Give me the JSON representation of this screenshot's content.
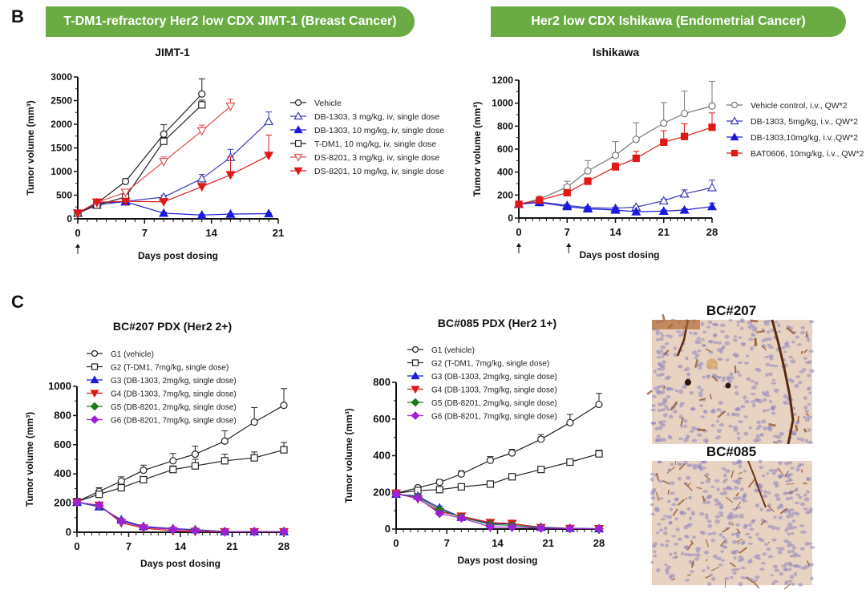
{
  "panels": {
    "B": "B",
    "C": "C"
  },
  "banners": {
    "left": "T-DM1-refractory Her2 low CDX JIMT-1 (Breast Cancer)",
    "right": "Her2 low CDX Ishikawa (Endometrial Cancer)"
  },
  "ihc": {
    "top_label": "BC#207",
    "bottom_label": "BC#085",
    "stain_color": "#8b4a1e",
    "background_color": "#e8d2c2",
    "nuclei_color": "#8e86c0"
  },
  "chart_data": [
    {
      "id": "jimt1",
      "type": "line",
      "title": "JIMT-1",
      "xlabel": "Days post dosing",
      "ylabel": "Tumor volume (mm³)",
      "xlim": [
        0,
        21
      ],
      "ylim": [
        0,
        3000
      ],
      "xticks": [
        0,
        7,
        14,
        21
      ],
      "yticks": [
        0,
        500,
        1000,
        1500,
        2000,
        2500,
        3000
      ],
      "dosing_arrows": [
        0
      ],
      "legend": "right",
      "grid": false,
      "series": [
        {
          "name": "Vehicle",
          "color": "#222222",
          "marker": "circle-open",
          "x": [
            0,
            2,
            5,
            9,
            13
          ],
          "y": [
            120,
            330,
            790,
            1790,
            2640
          ],
          "err": [
            20,
            40,
            60,
            200,
            320
          ]
        },
        {
          "name": "DB-1303, 3  mg/kg, iv, single dose",
          "color": "#3a3ab8",
          "marker": "triangle-up-open",
          "x": [
            0,
            2,
            5,
            9,
            13,
            16,
            20
          ],
          "y": [
            120,
            290,
            370,
            460,
            850,
            1300,
            2060
          ],
          "err": [
            20,
            30,
            30,
            40,
            90,
            170,
            200
          ]
        },
        {
          "name": "DB-1303, 10 mg/kg, iv, single dose",
          "color": "#1a1adc",
          "marker": "triangle-up-filled",
          "x": [
            0,
            2,
            5,
            9,
            13,
            16,
            20
          ],
          "y": [
            120,
            340,
            360,
            120,
            80,
            100,
            110
          ],
          "err": [
            20,
            30,
            30,
            20,
            10,
            10,
            10
          ]
        },
        {
          "name": "T-DM1, 10 mg/kg, iv, single dose",
          "color": "#222222",
          "marker": "square-open",
          "x": [
            0,
            2,
            5,
            9,
            13
          ],
          "y": [
            120,
            290,
            460,
            1640,
            2410
          ],
          "err": [
            20,
            30,
            40,
            80,
            100
          ]
        },
        {
          "name": "DS-8201, 3 mg/kg, iv, single dose",
          "color": "#e05050",
          "marker": "triangle-down-open",
          "x": [
            0,
            2,
            5,
            9,
            13,
            16
          ],
          "y": [
            120,
            350,
            560,
            1210,
            1860,
            2380
          ],
          "err": [
            20,
            30,
            40,
            100,
            120,
            150
          ]
        },
        {
          "name": "DS-8201, 10 mg/kg, iv, single dose",
          "color": "#e01818",
          "marker": "triangle-down-filled",
          "x": [
            0,
            2,
            5,
            9,
            13,
            16,
            20
          ],
          "y": [
            120,
            350,
            370,
            360,
            680,
            930,
            1340
          ],
          "err": [
            20,
            30,
            30,
            30,
            40,
            380,
            430
          ]
        }
      ]
    },
    {
      "id": "ishikawa",
      "type": "line",
      "title": "Ishikawa",
      "xlabel": "Days post dosing",
      "ylabel": "Tumor volume (mm³)",
      "xlim": [
        0,
        28
      ],
      "ylim": [
        0,
        1200
      ],
      "xticks": [
        0,
        7,
        14,
        21,
        28
      ],
      "yticks": [
        0,
        200,
        400,
        600,
        800,
        1000,
        1200
      ],
      "dosing_arrows": [
        0,
        7
      ],
      "legend": "right",
      "grid": false,
      "series": [
        {
          "name": "Vehicle control, i.v., QW*2",
          "color": "#777777",
          "marker": "circle-open",
          "x": [
            0,
            3,
            7,
            10,
            14,
            17,
            21,
            24,
            28
          ],
          "y": [
            120,
            165,
            270,
            410,
            545,
            685,
            825,
            910,
            975
          ],
          "err": [
            15,
            15,
            50,
            90,
            120,
            145,
            180,
            195,
            215
          ]
        },
        {
          "name": "DB-1303, 5mg/kg, i.v., QW*2",
          "color": "#3a3ab8",
          "marker": "triangle-up-open",
          "x": [
            0,
            3,
            7,
            10,
            14,
            17,
            21,
            24,
            28
          ],
          "y": [
            120,
            140,
            110,
            90,
            85,
            95,
            150,
            210,
            265
          ],
          "err": [
            10,
            10,
            10,
            10,
            10,
            10,
            15,
            35,
            65
          ]
        },
        {
          "name": "DB-1303,10mg/kg, i.v.,QW*2",
          "color": "#1a1adc",
          "marker": "triangle-up-filled",
          "x": [
            0,
            3,
            7,
            10,
            14,
            17,
            21,
            24,
            28
          ],
          "y": [
            120,
            135,
            100,
            80,
            70,
            55,
            60,
            70,
            100
          ],
          "err": [
            10,
            10,
            10,
            10,
            10,
            10,
            10,
            10,
            30
          ]
        },
        {
          "name": "BAT0606, 10mg/kg, i.v., QW*2",
          "color": "#e01818",
          "marker": "square-filled",
          "x": [
            0,
            3,
            7,
            10,
            14,
            17,
            21,
            24,
            28
          ],
          "y": [
            120,
            155,
            220,
            320,
            445,
            520,
            660,
            710,
            790
          ],
          "err": [
            10,
            15,
            20,
            30,
            35,
            60,
            100,
            110,
            125
          ]
        }
      ]
    },
    {
      "id": "bc207",
      "type": "line",
      "title": "BC#207 PDX (Her2 2+)",
      "xlabel": "Days post dosing",
      "ylabel": "Tumor volume (mm³)",
      "xlim": [
        0,
        28
      ],
      "ylim": [
        0,
        1000
      ],
      "xticks": [
        0,
        7,
        14,
        21,
        28
      ],
      "yticks": [
        0,
        200,
        400,
        600,
        800,
        1000
      ],
      "legend": "top-left",
      "grid": false,
      "series": [
        {
          "name": "G1 (vehicle)",
          "color": "#222222",
          "marker": "circle-open",
          "x": [
            0,
            3,
            6,
            9,
            13,
            16,
            20,
            24,
            28
          ],
          "y": [
            210,
            280,
            350,
            425,
            490,
            535,
            625,
            755,
            870
          ],
          "err": [
            10,
            25,
            30,
            35,
            50,
            55,
            70,
            100,
            115
          ]
        },
        {
          "name": "G2 (T-DM1, 7mg/kg, single dose)",
          "color": "#222222",
          "marker": "square-open",
          "x": [
            0,
            3,
            6,
            9,
            13,
            16,
            20,
            24,
            28
          ],
          "y": [
            210,
            260,
            305,
            360,
            430,
            455,
            490,
            510,
            565
          ],
          "err": [
            10,
            20,
            20,
            20,
            25,
            45,
            45,
            40,
            50
          ]
        },
        {
          "name": "G3 (DB-1303, 2mg/kg, single dose)",
          "color": "#1a1adc",
          "marker": "triangle-up-filled",
          "x": [
            0,
            3,
            6,
            9,
            13,
            16,
            20,
            24,
            28
          ],
          "y": [
            205,
            175,
            85,
            40,
            25,
            18,
            5,
            5,
            5
          ],
          "err": [
            8,
            10,
            10,
            8,
            5,
            5,
            3,
            3,
            3
          ]
        },
        {
          "name": "G4 (DB-1303, 7mg/kg, single dose)",
          "color": "#e01818",
          "marker": "triangle-down-filled",
          "x": [
            0,
            3,
            6,
            9,
            13,
            16,
            20,
            24,
            28
          ],
          "y": [
            205,
            185,
            65,
            28,
            10,
            5,
            3,
            3,
            3
          ],
          "err": [
            8,
            10,
            8,
            5,
            3,
            3,
            2,
            2,
            2
          ]
        },
        {
          "name": "G5 (DB-8201, 2mg/kg, single dose)",
          "color": "#1a7a1a",
          "marker": "diamond-filled",
          "x": [
            0,
            3,
            6,
            9,
            13,
            16,
            20,
            24,
            28
          ],
          "y": [
            205,
            180,
            75,
            35,
            20,
            15,
            5,
            5,
            5
          ],
          "err": [
            8,
            10,
            8,
            6,
            4,
            4,
            2,
            2,
            2
          ]
        },
        {
          "name": "G6 (DB-8201, 7mg/kg, single dose)",
          "color": "#a020d8",
          "marker": "diamond-filled",
          "x": [
            0,
            3,
            6,
            9,
            13,
            16,
            20,
            24,
            28
          ],
          "y": [
            205,
            185,
            75,
            35,
            20,
            12,
            5,
            5,
            5
          ],
          "err": [
            8,
            10,
            8,
            6,
            4,
            4,
            2,
            2,
            2
          ]
        }
      ]
    },
    {
      "id": "bc085",
      "type": "line",
      "title": "BC#085 PDX (Her2 1+)",
      "xlabel": "Days post dosing",
      "ylabel": "Tumor volume (mm³)",
      "xlim": [
        0,
        28
      ],
      "ylim": [
        0,
        800
      ],
      "xticks": [
        0,
        7,
        14,
        21,
        28
      ],
      "yticks": [
        0,
        200,
        400,
        600,
        800
      ],
      "legend": "top-left",
      "grid": false,
      "series": [
        {
          "name": "G1 (vehicle)",
          "color": "#222222",
          "marker": "circle-open",
          "x": [
            0,
            3,
            6,
            9,
            13,
            16,
            20,
            24,
            28
          ],
          "y": [
            195,
            225,
            255,
            300,
            375,
            415,
            490,
            580,
            680
          ],
          "err": [
            8,
            10,
            15,
            18,
            20,
            20,
            25,
            45,
            60
          ]
        },
        {
          "name": "G2 (T-DM1, 7mg/kg, single dose)",
          "color": "#222222",
          "marker": "square-open",
          "x": [
            0,
            3,
            6,
            9,
            13,
            16,
            20,
            24,
            28
          ],
          "y": [
            195,
            210,
            215,
            230,
            245,
            285,
            325,
            365,
            410
          ],
          "err": [
            8,
            8,
            8,
            8,
            10,
            12,
            12,
            15,
            20
          ]
        },
        {
          "name": "G3 (DB-1303, 2mg/kg, single dose)",
          "color": "#1a1adc",
          "marker": "triangle-up-filled",
          "x": [
            0,
            3,
            6,
            9,
            13,
            16,
            20,
            24,
            28
          ],
          "y": [
            190,
            180,
            115,
            65,
            30,
            28,
            10,
            4,
            2
          ],
          "err": [
            8,
            10,
            10,
            8,
            5,
            5,
            3,
            2,
            2
          ]
        },
        {
          "name": "G4 (DB-1303, 7mg/kg, single dose)",
          "color": "#e01818",
          "marker": "triangle-down-filled",
          "x": [
            0,
            3,
            6,
            9,
            13,
            16,
            20,
            24,
            28
          ],
          "y": [
            195,
            165,
            95,
            70,
            35,
            30,
            8,
            3,
            2
          ],
          "err": [
            8,
            10,
            8,
            6,
            5,
            5,
            3,
            2,
            2
          ]
        },
        {
          "name": "G5 (DB-8201, 2mg/kg, single dose)",
          "color": "#1a7a1a",
          "marker": "diamond-filled",
          "x": [
            0,
            3,
            6,
            9,
            13,
            16,
            20,
            24,
            28
          ],
          "y": [
            190,
            175,
            105,
            65,
            25,
            20,
            8,
            3,
            2
          ],
          "err": [
            8,
            10,
            8,
            6,
            4,
            4,
            2,
            2,
            2
          ]
        },
        {
          "name": "G6 (DB-8201, 7mg/kg, single dose)",
          "color": "#a020d8",
          "marker": "diamond-filled",
          "x": [
            0,
            3,
            6,
            9,
            13,
            16,
            20,
            24,
            28
          ],
          "y": [
            190,
            170,
            85,
            60,
            12,
            10,
            5,
            3,
            2
          ],
          "err": [
            8,
            10,
            8,
            6,
            4,
            4,
            2,
            2,
            2
          ]
        }
      ]
    }
  ]
}
